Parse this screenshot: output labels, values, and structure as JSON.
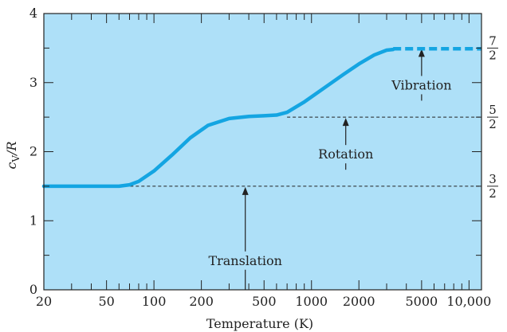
{
  "chart_data": {
    "type": "line",
    "title": "",
    "xlabel": "Temperature (K)",
    "ylabel_parts": {
      "base": "c",
      "sub": "V",
      "rest": "/R"
    },
    "xscale": "log",
    "xlim": [
      20,
      12000
    ],
    "ylim": [
      0,
      4
    ],
    "x_ticks": [
      {
        "value": 20,
        "label": "20"
      },
      {
        "value": 50,
        "label": "50"
      },
      {
        "value": 100,
        "label": "100"
      },
      {
        "value": 200,
        "label": "200"
      },
      {
        "value": 500,
        "label": "500"
      },
      {
        "value": 1000,
        "label": "1000"
      },
      {
        "value": 2000,
        "label": "2000"
      },
      {
        "value": 5000,
        "label": "5000"
      },
      {
        "value": 10000,
        "label": "10,000"
      }
    ],
    "y_ticks": [
      {
        "value": 0,
        "label": "0"
      },
      {
        "value": 1,
        "label": "1"
      },
      {
        "value": 2,
        "label": "2"
      },
      {
        "value": 3,
        "label": "3"
      },
      {
        "value": 4,
        "label": "4"
      }
    ],
    "right_ticks": [
      {
        "value": 1.5,
        "num": "3",
        "den": "2"
      },
      {
        "value": 2.5,
        "num": "5",
        "den": "2"
      },
      {
        "value": 3.5,
        "num": "7",
        "den": "2"
      }
    ],
    "series": [
      {
        "x": [
          20,
          40,
          60,
          70,
          80,
          100,
          130,
          170,
          220,
          300,
          400,
          500,
          600,
          700,
          900,
          1200,
          1600,
          2000,
          2500,
          3000,
          3300
        ],
        "y": [
          1.5,
          1.5,
          1.5,
          1.52,
          1.57,
          1.72,
          1.95,
          2.2,
          2.38,
          2.48,
          2.51,
          2.52,
          2.53,
          2.57,
          2.72,
          2.92,
          3.12,
          3.27,
          3.4,
          3.47,
          3.48
        ]
      }
    ],
    "dashed_extension": {
      "x": [
        3300,
        12000
      ],
      "y": [
        3.49,
        3.49
      ]
    },
    "reference_lines": [
      {
        "y": 1.5,
        "x_from": 60,
        "x_to": 12000
      },
      {
        "y": 2.5,
        "x_from": 700,
        "x_to": 12000
      }
    ],
    "annotations": [
      {
        "text": "Translation",
        "x": 380,
        "y": 0.36,
        "arrow_to": [
          380,
          1.5
        ]
      },
      {
        "text": "Rotation",
        "x": 1650,
        "y": 1.9,
        "arrow_to": [
          1650,
          2.5
        ]
      },
      {
        "text": "Vibration",
        "x": 5000,
        "y": 2.9,
        "arrow_to": [
          5000,
          3.5
        ]
      }
    ],
    "colors": {
      "background": "#aee0f8",
      "line": "#14a5e2",
      "text": "#222222"
    },
    "grid": false
  }
}
